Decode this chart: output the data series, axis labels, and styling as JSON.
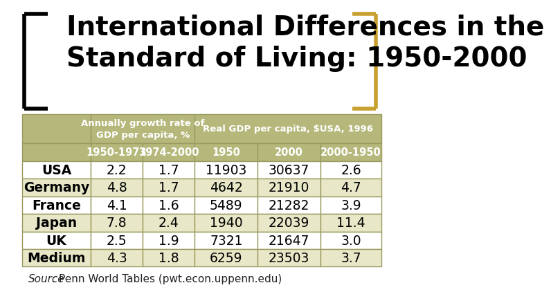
{
  "title_line1": "International Differences in the",
  "title_line2": "Standard of Living: 1950-2000",
  "header1_text": "Annually growth rate of\nGDP per capita, %",
  "header2_text": "Real GDP per capita, $USA, 1996",
  "sub_headers": [
    "1950-1973",
    "1974-2000",
    "1950",
    "2000",
    "2000-1950"
  ],
  "row_labels": [
    "USA",
    "Germany",
    "France",
    "Japan",
    "UK",
    "Medium"
  ],
  "table_data": [
    [
      "2.2",
      "1.7",
      "11903",
      "30637",
      "2.6"
    ],
    [
      "4.8",
      "1.7",
      "4642",
      "21910",
      "4.7"
    ],
    [
      "4.1",
      "1.6",
      "5489",
      "21282",
      "3.9"
    ],
    [
      "7.8",
      "2.4",
      "1940",
      "22039",
      "11.4"
    ],
    [
      "2.5",
      "1.9",
      "7321",
      "21647",
      "3.0"
    ],
    [
      "4.3",
      "1.8",
      "6259",
      "23503",
      "3.7"
    ]
  ],
  "bg_color": "#ffffff",
  "title_color": "#000000",
  "table_header_bg": "#b5b87a",
  "table_header_text": "#ffffff",
  "table_row_bg_odd": "#e8e8c8",
  "table_row_bg_even": "#ffffff",
  "table_row_text": "#000000",
  "table_border_color": "#9a9a60",
  "bracket_left_color": "#000000",
  "bracket_right_color": "#c8a030",
  "title_fontsize": 28,
  "header_fontsize": 9.5,
  "subheader_fontsize": 10.5,
  "data_fontsize": 13.5,
  "row_label_fontsize": 13.5,
  "source_fontsize": 11
}
